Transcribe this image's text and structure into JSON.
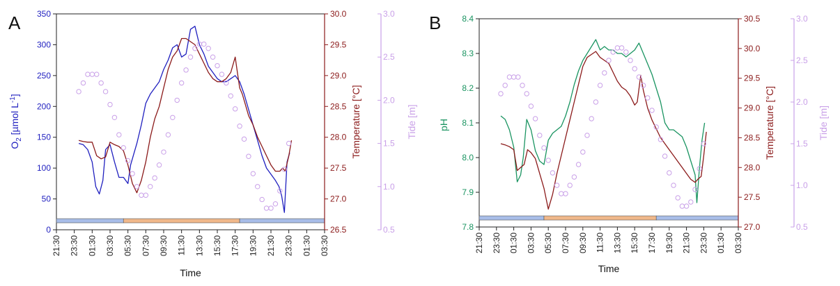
{
  "colors": {
    "o2": "#1f1fbf",
    "ph": "#1a9461",
    "temperature": "#8b1a1a",
    "tide": "#c9a0e8",
    "night": "#a8bde8",
    "day": "#f0b88a",
    "axis": "#222222"
  },
  "chart_data": [
    {
      "type": "line",
      "panel_label": "A",
      "xlabel": "Time",
      "x_ticks": [
        "21:30",
        "23:30",
        "01:30",
        "03:30",
        "05:30",
        "07:30",
        "09:30",
        "11:30",
        "13:30",
        "15:30",
        "17:30",
        "19:30",
        "21:30",
        "23:30",
        "01:30",
        "03:30"
      ],
      "xlim": [
        0,
        30
      ],
      "x_unit_note": "hours since 21:30",
      "left_axis": {
        "label_main": "O",
        "label_sub": "2",
        "label_mid": " [µmol L",
        "label_sup": "-1",
        "label_end": "]",
        "ylim": [
          0,
          350
        ],
        "ticks": [
          "0",
          "50",
          "100",
          "150",
          "200",
          "250",
          "300",
          "350"
        ]
      },
      "right_axis_1": {
        "label": "Temperature [°C]",
        "ylim": [
          26.5,
          30.0
        ],
        "ticks": [
          "26.5",
          "27.0",
          "27.5",
          "28.0",
          "28.5",
          "29.0",
          "29.5",
          "30.0"
        ]
      },
      "right_axis_2": {
        "label": "Tide [m]",
        "ylim": [
          0.5,
          3.0
        ],
        "ticks": [
          "0.5",
          "1.0",
          "1.5",
          "2.0",
          "2.5",
          "3.0"
        ]
      },
      "light_periods": [
        {
          "phase": "night",
          "start": 0,
          "end": 7.5
        },
        {
          "phase": "day",
          "start": 7.5,
          "end": 20.5
        },
        {
          "phase": "night",
          "start": 20.5,
          "end": 30
        }
      ],
      "series": [
        {
          "name": "O2",
          "axis": "left",
          "x": [
            2.5,
            3,
            3.5,
            4,
            4.4,
            4.8,
            5.2,
            5.5,
            6,
            6.5,
            7,
            7.5,
            8,
            8.3,
            8.7,
            9,
            9.5,
            10,
            10.5,
            11,
            11.5,
            12,
            12.5,
            13,
            13.5,
            14,
            14.5,
            15,
            15.5,
            16,
            16.5,
            17,
            17.5,
            18,
            18.5,
            19,
            19.5,
            20,
            20.5,
            21,
            21.5,
            22,
            22.5,
            23,
            23.5,
            24,
            24.5,
            24.9,
            25.2,
            25.5,
            25.8,
            26.1
          ],
          "y": [
            140,
            138,
            130,
            110,
            70,
            58,
            80,
            130,
            138,
            110,
            85,
            85,
            75,
            105,
            125,
            140,
            170,
            205,
            220,
            230,
            240,
            260,
            275,
            295,
            300,
            280,
            285,
            325,
            330,
            300,
            285,
            265,
            255,
            245,
            240,
            240,
            245,
            250,
            240,
            220,
            195,
            170,
            145,
            120,
            100,
            90,
            80,
            70,
            55,
            28,
            110,
            125
          ]
        },
        {
          "name": "Temperature",
          "axis": "right_1",
          "x": [
            2.5,
            3,
            3.5,
            4,
            4.5,
            5,
            5.5,
            6,
            6.5,
            7,
            7.5,
            8,
            8.5,
            9,
            9.5,
            10,
            10.5,
            11,
            11.5,
            12,
            12.5,
            13,
            13.5,
            14,
            14.5,
            15,
            15.5,
            16,
            16.5,
            17,
            17.5,
            18,
            18.5,
            19,
            19.5,
            20,
            20.2,
            20.5,
            20.8,
            21,
            21.5,
            22,
            22.5,
            23,
            23.5,
            24,
            24.5,
            25,
            25.3,
            25.6,
            26.0,
            26.3
          ],
          "y": [
            27.95,
            27.93,
            27.92,
            27.92,
            27.7,
            27.65,
            27.68,
            27.92,
            27.88,
            27.85,
            27.78,
            27.55,
            27.25,
            27.1,
            27.3,
            27.6,
            28.0,
            28.3,
            28.5,
            28.8,
            29.1,
            29.3,
            29.4,
            29.6,
            29.6,
            29.55,
            29.5,
            29.35,
            29.2,
            29.05,
            28.95,
            28.9,
            28.9,
            28.95,
            29.05,
            29.3,
            29.1,
            28.8,
            28.7,
            28.6,
            28.35,
            28.2,
            28.0,
            27.85,
            27.7,
            27.55,
            27.45,
            27.45,
            27.5,
            27.45,
            27.7,
            27.95
          ]
        },
        {
          "name": "Tide",
          "axis": "right_2",
          "x": [
            2.5,
            3.0,
            3.5,
            4.0,
            4.5,
            5.0,
            5.5,
            6.0,
            6.5,
            7.0,
            7.5,
            8.0,
            8.5,
            9.0,
            9.5,
            10.0,
            10.5,
            11.0,
            11.5,
            12.0,
            12.5,
            13.0,
            13.5,
            14.0,
            14.5,
            15.0,
            15.5,
            16.0,
            16.5,
            17.0,
            17.5,
            18.0,
            18.5,
            19.0,
            19.5,
            20.0,
            20.5,
            21.0,
            21.5,
            22.0,
            22.5,
            23.0,
            23.5,
            24.0,
            24.5,
            25.0,
            25.5,
            26.0
          ],
          "y": [
            2.1,
            2.2,
            2.3,
            2.3,
            2.3,
            2.2,
            2.1,
            1.95,
            1.8,
            1.6,
            1.45,
            1.3,
            1.15,
            1.0,
            0.9,
            0.9,
            1.0,
            1.1,
            1.25,
            1.4,
            1.6,
            1.8,
            2.0,
            2.2,
            2.35,
            2.5,
            2.6,
            2.65,
            2.65,
            2.6,
            2.5,
            2.4,
            2.3,
            2.2,
            2.05,
            1.9,
            1.7,
            1.55,
            1.35,
            1.15,
            1.0,
            0.85,
            0.75,
            0.75,
            0.8,
            0.95,
            1.2,
            1.5
          ]
        }
      ]
    },
    {
      "type": "line",
      "panel_label": "B",
      "xlabel": "Time",
      "x_ticks": [
        "21:30",
        "23:30",
        "01:30",
        "03:30",
        "05:30",
        "07:30",
        "09:30",
        "11:30",
        "13:30",
        "15:30",
        "17:30",
        "19:30",
        "21:30",
        "23:30",
        "01:30",
        "03:30"
      ],
      "xlim": [
        0,
        30
      ],
      "x_unit_note": "hours since 21:30",
      "left_axis": {
        "label": "pH",
        "ylim": [
          7.8,
          8.4
        ],
        "ticks": [
          "7.8",
          "7.9",
          "8.0",
          "8.1",
          "8.2",
          "8.3",
          "8.4"
        ]
      },
      "right_axis_1": {
        "label": "Temperature [°C]",
        "ylim": [
          27.0,
          30.5
        ],
        "ticks": [
          "27.0",
          "27.5",
          "28.0",
          "28.5",
          "29.0",
          "29.5",
          "30.0",
          "30.5"
        ]
      },
      "right_axis_2": {
        "label": "Tide [m]",
        "ylim": [
          0.5,
          3.0
        ],
        "ticks": [
          "0.5",
          "1.0",
          "1.5",
          "2.0",
          "2.5",
          "3.0"
        ]
      },
      "light_periods": [
        {
          "phase": "night",
          "start": 0,
          "end": 7.5
        },
        {
          "phase": "day",
          "start": 7.5,
          "end": 20.5
        },
        {
          "phase": "night",
          "start": 20.5,
          "end": 30
        }
      ],
      "series": [
        {
          "name": "pH",
          "axis": "left",
          "x": [
            2.5,
            3,
            3.5,
            4,
            4.4,
            4.8,
            5.1,
            5.5,
            6,
            6.5,
            7,
            7.5,
            8,
            8.5,
            9,
            9.5,
            10,
            10.5,
            11,
            11.5,
            12,
            12.5,
            13,
            13.5,
            14,
            14.5,
            15,
            15.5,
            16,
            16.5,
            17,
            17.5,
            18,
            18.5,
            19,
            19.5,
            20,
            20.5,
            21,
            21.5,
            22,
            22.5,
            23,
            23.5,
            24,
            24.5,
            25,
            25.2,
            25.5,
            25.8,
            26.1
          ],
          "y": [
            8.12,
            8.11,
            8.08,
            8.03,
            7.93,
            7.95,
            8.0,
            8.11,
            8.08,
            8.02,
            7.99,
            7.98,
            8.05,
            8.07,
            8.08,
            8.09,
            8.12,
            8.16,
            8.21,
            8.25,
            8.28,
            8.3,
            8.32,
            8.34,
            8.31,
            8.32,
            8.31,
            8.31,
            8.3,
            8.3,
            8.29,
            8.3,
            8.31,
            8.33,
            8.3,
            8.27,
            8.24,
            8.2,
            8.16,
            8.1,
            8.08,
            8.08,
            8.07,
            8.06,
            8.03,
            7.99,
            7.95,
            7.87,
            7.97,
            8.05,
            8.1
          ]
        },
        {
          "name": "Temperature",
          "axis": "right_1",
          "x": [
            2.5,
            3,
            3.5,
            4,
            4.4,
            4.8,
            5.2,
            5.6,
            6,
            6.5,
            7,
            7.5,
            8,
            8.5,
            9,
            9.5,
            10,
            10.5,
            11,
            11.5,
            12,
            12.5,
            13,
            13.5,
            14,
            14.5,
            15,
            15.5,
            16,
            16.5,
            17,
            17.5,
            18,
            18.3,
            18.7,
            19,
            19.5,
            20,
            20.5,
            21,
            21.5,
            22,
            22.5,
            23,
            23.5,
            24,
            24.5,
            25,
            25.3,
            25.7,
            26.0,
            26.3
          ],
          "y": [
            28.4,
            28.38,
            28.35,
            28.3,
            27.95,
            28.0,
            28.05,
            28.3,
            28.25,
            28.15,
            27.9,
            27.65,
            27.3,
            27.55,
            27.9,
            28.2,
            28.5,
            28.8,
            29.1,
            29.4,
            29.7,
            29.85,
            29.9,
            29.95,
            29.85,
            29.8,
            29.75,
            29.6,
            29.45,
            29.35,
            29.3,
            29.2,
            29.05,
            29.1,
            29.55,
            29.3,
            29.0,
            28.8,
            28.65,
            28.5,
            28.4,
            28.3,
            28.2,
            28.1,
            28.0,
            27.9,
            27.8,
            27.75,
            27.8,
            27.85,
            28.2,
            28.6
          ]
        },
        {
          "name": "Tide",
          "axis": "right_2",
          "x": [
            2.5,
            3.0,
            3.5,
            4.0,
            4.5,
            5.0,
            5.5,
            6.0,
            6.5,
            7.0,
            7.5,
            8.0,
            8.5,
            9.0,
            9.5,
            10.0,
            10.5,
            11.0,
            11.5,
            12.0,
            12.5,
            13.0,
            13.5,
            14.0,
            14.5,
            15.0,
            15.5,
            16.0,
            16.5,
            17.0,
            17.5,
            18.0,
            18.5,
            19.0,
            19.5,
            20.0,
            20.5,
            21.0,
            21.5,
            22.0,
            22.5,
            23.0,
            23.5,
            24.0,
            24.5,
            25.0,
            25.5,
            26.0
          ],
          "y": [
            2.1,
            2.2,
            2.3,
            2.3,
            2.3,
            2.2,
            2.1,
            1.95,
            1.8,
            1.6,
            1.45,
            1.3,
            1.15,
            1.0,
            0.9,
            0.9,
            1.0,
            1.1,
            1.25,
            1.4,
            1.6,
            1.8,
            2.0,
            2.2,
            2.35,
            2.5,
            2.6,
            2.65,
            2.65,
            2.6,
            2.5,
            2.4,
            2.3,
            2.2,
            2.05,
            1.9,
            1.7,
            1.55,
            1.35,
            1.15,
            1.0,
            0.85,
            0.75,
            0.75,
            0.8,
            0.95,
            1.2,
            1.5
          ]
        }
      ]
    }
  ]
}
